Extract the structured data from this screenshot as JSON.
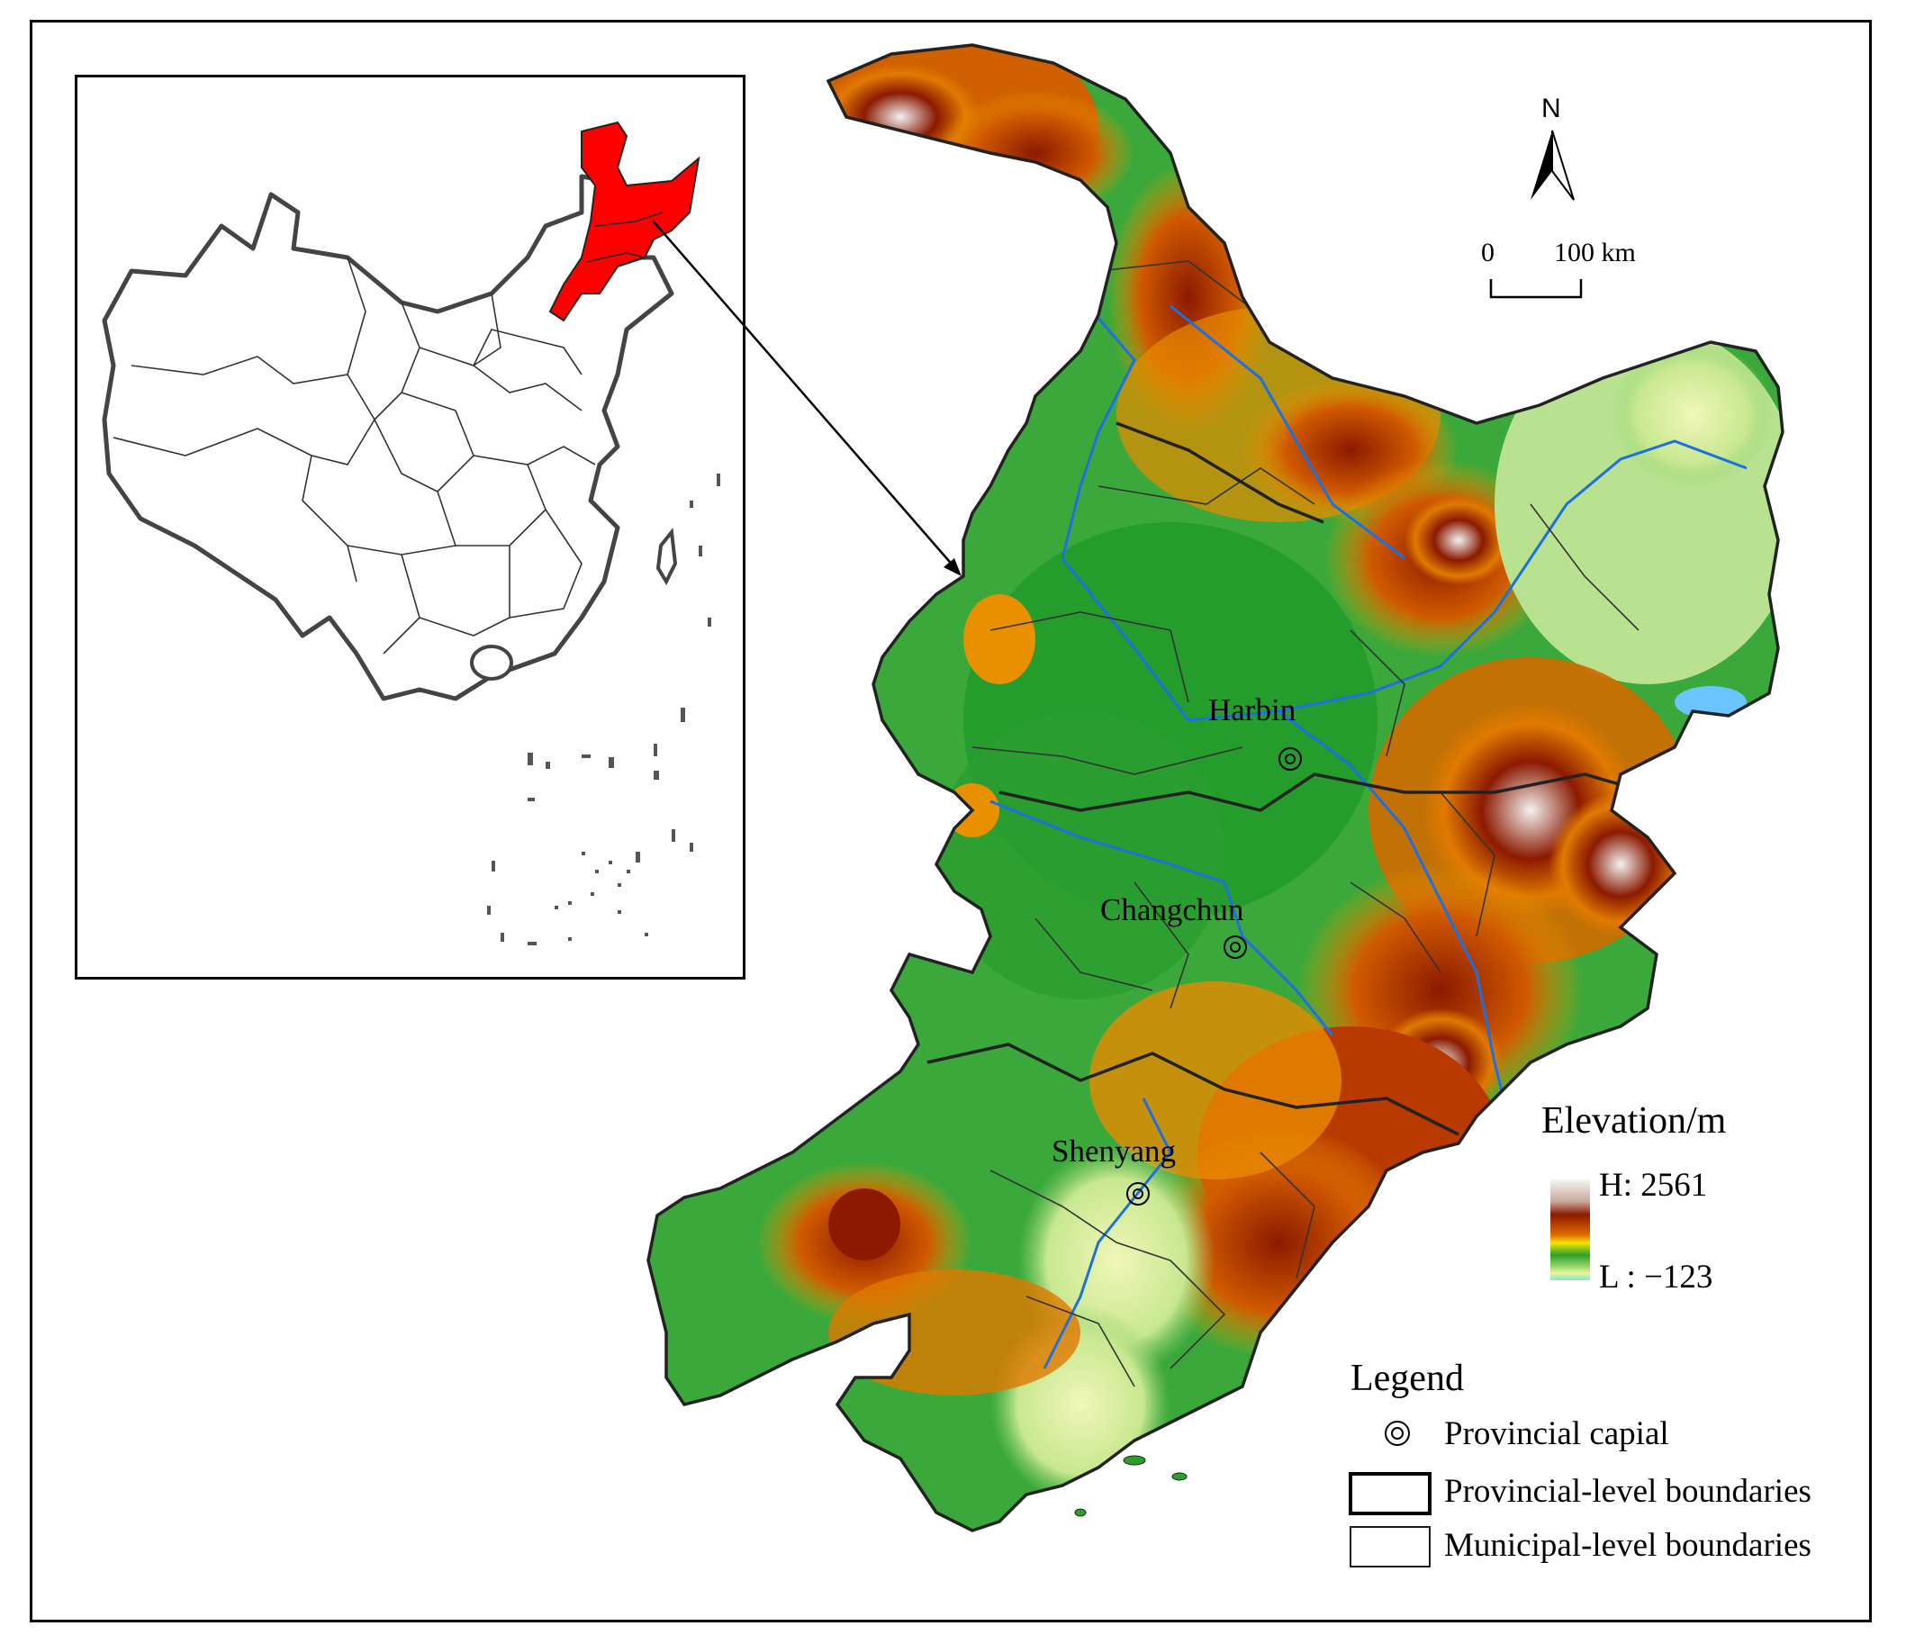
{
  "colors": {
    "highlight": "#ff0000",
    "elev_high": "#f5f5f5",
    "elev_brown": "#8b1a00",
    "elev_orange": "#f08a00",
    "elev_yellow": "#f2e600",
    "elev_green": "#2aa02a",
    "elev_lightgreen": "#e8f5a0",
    "elev_low": "#7fe8c8",
    "river": "#1e6fe0"
  },
  "north_arrow": {
    "label": "N"
  },
  "scale_bar": {
    "start_label": "0",
    "end_label": "100 km"
  },
  "cities": [
    {
      "name": "Harbin"
    },
    {
      "name": "Changchun"
    },
    {
      "name": "Shenyang"
    }
  ],
  "elevation_legend": {
    "title": "Elevation/m",
    "high_label": "H: 2561",
    "low_label": "L : −123"
  },
  "legend": {
    "title": "Legend",
    "items": [
      {
        "icon": "provincial-capital-icon",
        "label": "Provincial capial"
      },
      {
        "icon": "provincial-boundary-swatch",
        "label": "Provincial-level boundaries"
      },
      {
        "icon": "municipal-boundary-swatch",
        "label": "Municipal-level boundaries"
      }
    ]
  }
}
